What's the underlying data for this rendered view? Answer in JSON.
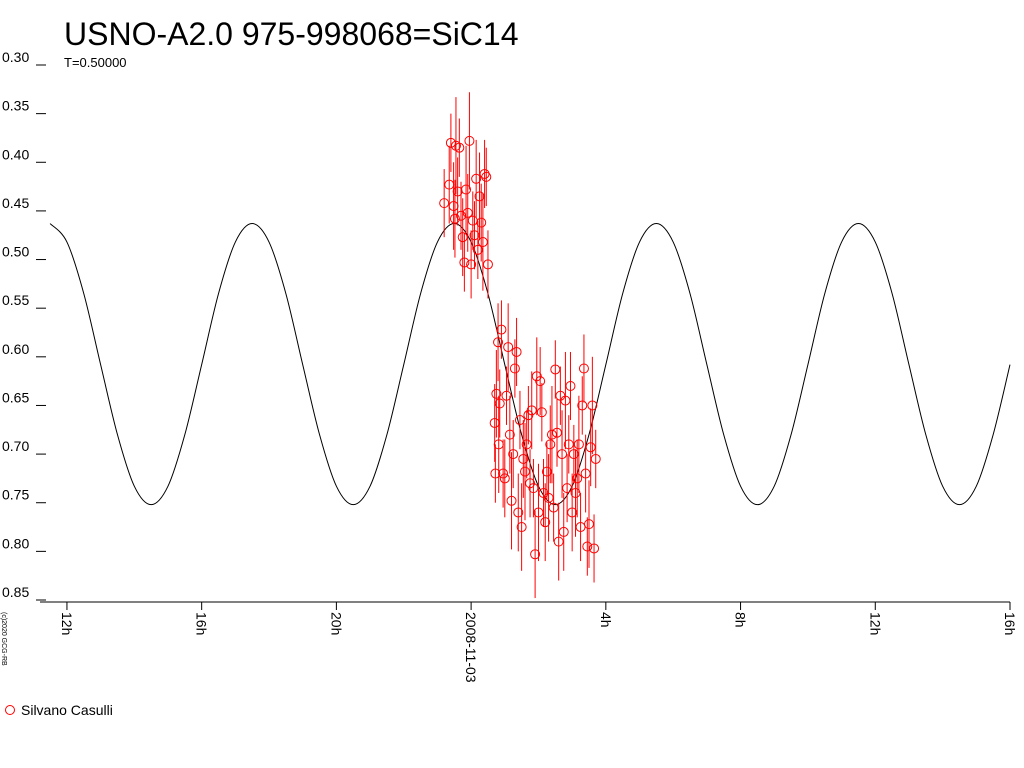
{
  "chart_data": {
    "type": "scatter",
    "title": "USNO-A2.0 975-998068=SiC14",
    "subtitle": "T=0.50000",
    "credit": "(c)2020 GCG-RB",
    "xlim": [
      -12.8,
      16
    ],
    "xticks": [
      {
        "value": -12,
        "label": "12h"
      },
      {
        "value": -8,
        "label": "16h"
      },
      {
        "value": -4,
        "label": "20h"
      },
      {
        "value": 0,
        "label": "2008-11-03"
      },
      {
        "value": 4,
        "label": "4h"
      },
      {
        "value": 8,
        "label": "8h"
      },
      {
        "value": 12,
        "label": "12h"
      },
      {
        "value": 16,
        "label": "16h"
      }
    ],
    "ylim": [
      0.85,
      0.3
    ],
    "yticks": [
      {
        "value": 0.3,
        "label": "0.30"
      },
      0.35,
      {
        "value": 0.4,
        "label": "0.40"
      },
      0.45,
      {
        "value": 0.5,
        "label": "0.50"
      },
      0.55,
      {
        "value": 0.6,
        "label": "0.60"
      },
      0.65,
      {
        "value": 0.7,
        "label": "0.70"
      },
      0.75,
      {
        "value": 0.8,
        "label": "0.80"
      },
      0.85
    ],
    "legend": "bottom-left",
    "series": [
      {
        "name": "Silvano Casulli",
        "color": "#ff0000",
        "x": [
          -0.8,
          -0.65,
          -0.6,
          -0.52,
          -0.48,
          -0.45,
          -0.4,
          -0.35,
          -0.3,
          -0.25,
          -0.2,
          -0.15,
          -0.1,
          -0.05,
          0,
          0.05,
          0.1,
          0.15,
          0.2,
          0.25,
          0.3,
          0.35,
          0.4,
          0.45,
          0.5,
          0.7,
          0.72,
          0.75,
          0.8,
          0.82,
          0.85,
          0.9,
          0.95,
          1,
          1.05,
          1.1,
          1.15,
          1.2,
          1.25,
          1.3,
          1.35,
          1.4,
          1.45,
          1.5,
          1.55,
          1.6,
          1.65,
          1.7,
          1.75,
          1.8,
          1.85,
          1.9,
          1.95,
          2,
          2.05,
          2.1,
          2.15,
          2.2,
          2.25,
          2.3,
          2.35,
          2.4,
          2.45,
          2.5,
          2.55,
          2.6,
          2.65,
          2.7,
          2.75,
          2.8,
          2.85,
          2.9,
          2.95,
          3,
          3.05,
          3.1,
          3.15,
          3.2,
          3.25,
          3.3,
          3.35,
          3.4,
          3.45,
          3.5,
          3.55,
          3.6,
          3.65,
          3.7
        ],
        "values": [
          0.442,
          0.423,
          0.38,
          0.445,
          0.458,
          0.383,
          0.43,
          0.385,
          0.455,
          0.477,
          0.503,
          0.428,
          0.452,
          0.378,
          0.505,
          0.46,
          0.475,
          0.417,
          0.49,
          0.435,
          0.462,
          0.482,
          0.412,
          0.415,
          0.505,
          0.668,
          0.72,
          0.638,
          0.585,
          0.69,
          0.648,
          0.572,
          0.72,
          0.725,
          0.64,
          0.59,
          0.68,
          0.748,
          0.7,
          0.612,
          0.595,
          0.76,
          0.665,
          0.775,
          0.705,
          0.718,
          0.69,
          0.66,
          0.73,
          0.655,
          0.735,
          0.803,
          0.62,
          0.76,
          0.625,
          0.657,
          0.74,
          0.77,
          0.718,
          0.745,
          0.69,
          0.68,
          0.755,
          0.613,
          0.678,
          0.79,
          0.64,
          0.7,
          0.78,
          0.645,
          0.735,
          0.69,
          0.63,
          0.76,
          0.7,
          0.74,
          0.725,
          0.69,
          0.775,
          0.65,
          0.612,
          0.72,
          0.795,
          0.772,
          0.693,
          0.65,
          0.797,
          0.705
        ],
        "errors": [
          0.035,
          0.04,
          0.03,
          0.045,
          0.04,
          0.05,
          0.035,
          0.03,
          0.035,
          0.04,
          0.03,
          0.045,
          0.04,
          0.05,
          0.035,
          0.03,
          0.035,
          0.04,
          0.03,
          0.045,
          0.04,
          0.05,
          0.035,
          0.03,
          0.035,
          0.04,
          0.03,
          0.045,
          0.04,
          0.05,
          0.035,
          0.03,
          0.035,
          0.04,
          0.03,
          0.045,
          0.04,
          0.05,
          0.035,
          0.03,
          0.035,
          0.04,
          0.03,
          0.045,
          0.04,
          0.05,
          0.035,
          0.03,
          0.035,
          0.04,
          0.03,
          0.045,
          0.04,
          0.05,
          0.035,
          0.03,
          0.035,
          0.04,
          0.03,
          0.045,
          0.04,
          0.05,
          0.035,
          0.03,
          0.035,
          0.04,
          0.03,
          0.045,
          0.04,
          0.05,
          0.035,
          0.03,
          0.035,
          0.04,
          0.03,
          0.045,
          0.04,
          0.05,
          0.035,
          0.03,
          0.035,
          0.04,
          0.03,
          0.045,
          0.04,
          0.05,
          0.035,
          0.03
        ]
      }
    ],
    "model": {
      "color": "#000000",
      "x": [
        -12.5,
        -12,
        -11.5,
        -11,
        -10.5,
        -10,
        -9.5,
        -9,
        -8.5,
        -8,
        -7.5,
        -7,
        -6.5,
        -6,
        -5.5,
        -5,
        -4.5,
        -4,
        -3.5,
        -3,
        -2.5,
        -2,
        -1.5,
        -1,
        -0.5,
        0,
        0.5,
        1,
        1.5,
        2,
        2.5,
        3,
        3.5,
        4,
        4.5,
        5,
        5.5,
        6,
        6.5,
        7,
        7.5,
        8,
        8.5,
        9,
        9.5,
        10,
        10.5,
        11,
        11.5,
        12,
        12.5,
        13,
        13.5,
        14,
        14.5,
        15,
        15.5,
        16
      ],
      "values": [
        0.463,
        0.482,
        0.535,
        0.608,
        0.68,
        0.733,
        0.752,
        0.733,
        0.68,
        0.608,
        0.535,
        0.482,
        0.463,
        0.482,
        0.535,
        0.608,
        0.68,
        0.733,
        0.752,
        0.733,
        0.68,
        0.608,
        0.535,
        0.482,
        0.463,
        0.482,
        0.535,
        0.608,
        0.68,
        0.733,
        0.752,
        0.733,
        0.68,
        0.608,
        0.535,
        0.482,
        0.463,
        0.482,
        0.535,
        0.608,
        0.68,
        0.733,
        0.752,
        0.733,
        0.68,
        0.608,
        0.535,
        0.482,
        0.463,
        0.482,
        0.535,
        0.608,
        0.68,
        0.733,
        0.752,
        0.733,
        0.68,
        0.608
      ]
    }
  }
}
